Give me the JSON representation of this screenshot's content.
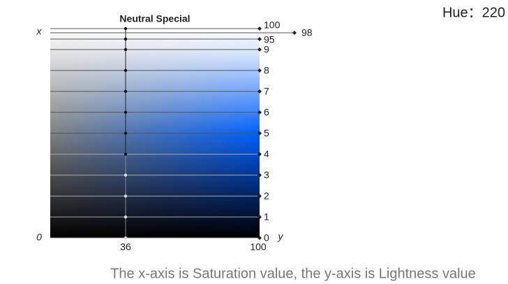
{
  "title": "Neutral Special",
  "hue_label": "Hue：220",
  "axis": {
    "x": "x",
    "origin": "0",
    "y": "y"
  },
  "saturation": {
    "value": 36,
    "max": 100
  },
  "levels": [
    100,
    95,
    {
      "value": 90,
      "label": "9"
    },
    {
      "value": 80,
      "label": "8"
    },
    {
      "value": 70,
      "label": "7"
    },
    {
      "value": 60,
      "label": "6"
    },
    {
      "value": 50,
      "label": "5"
    },
    {
      "value": 40,
      "label": "4"
    },
    {
      "value": 30,
      "label": "3"
    },
    {
      "value": 20,
      "label": "2"
    },
    {
      "value": 10,
      "label": "1"
    },
    0
  ],
  "extra_level": 98,
  "caption": "The x-axis is Saturation value, the y-axis is Lightness value"
}
